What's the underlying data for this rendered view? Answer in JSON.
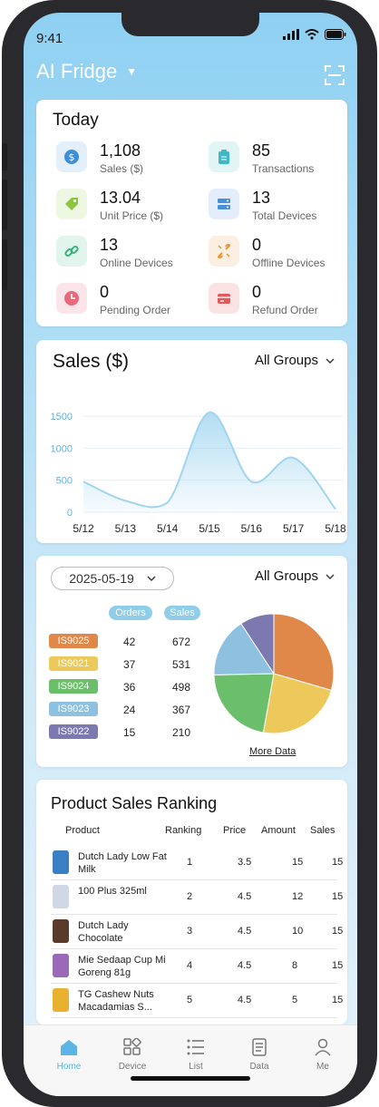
{
  "status_bar": {
    "time": "9:41"
  },
  "header": {
    "title": "AI Fridge"
  },
  "today": {
    "title": "Today",
    "stats": [
      {
        "value": "1,108",
        "label": "Sales ($)",
        "icon": "dollar-icon",
        "color": "#3b8fd9",
        "bg": "#e3f0fb"
      },
      {
        "value": "85",
        "label": "Transactions",
        "icon": "clipboard-icon",
        "color": "#3fb8c4",
        "bg": "#e2f5f6"
      },
      {
        "value": "13.04",
        "label": "Unit Price ($)",
        "icon": "price-tag-icon",
        "color": "#8cc63f",
        "bg": "#eef7e2"
      },
      {
        "value": "13",
        "label": "Total Devices",
        "icon": "server-icon",
        "color": "#4a90d9",
        "bg": "#e4eefa"
      },
      {
        "value": "13",
        "label": "Online Devices",
        "icon": "link-icon",
        "color": "#37b37e",
        "bg": "#e2f5ec"
      },
      {
        "value": "0",
        "label": "Offline Devices",
        "icon": "broken-link-icon",
        "color": "#e8963a",
        "bg": "#fbefe1"
      },
      {
        "value": "0",
        "label": "Pending Order",
        "icon": "clock-icon",
        "color": "#e96a7a",
        "bg": "#fbe5e8"
      },
      {
        "value": "0",
        "label": "Refund Order",
        "icon": "refund-icon",
        "color": "#e05a5a",
        "bg": "#fbe3e3"
      }
    ]
  },
  "sales": {
    "title": "Sales ($)",
    "group_filter": "All Groups"
  },
  "chart_data": {
    "type": "area",
    "title": "Sales ($)",
    "categories": [
      "5/12",
      "5/13",
      "5/14",
      "5/15",
      "5/16",
      "5/17",
      "5/18"
    ],
    "values": [
      480,
      180,
      150,
      1560,
      480,
      850,
      50
    ],
    "yticks": [
      "0",
      "500",
      "1000",
      "1500"
    ],
    "ylim": [
      0,
      1700
    ],
    "grid": true,
    "color": "#9fd5f0"
  },
  "devices": {
    "date": "2025-05-19",
    "group_filter": "All Groups",
    "col_orders": "Orders",
    "col_sales": "Sales",
    "rows": [
      {
        "id": "IS9025",
        "orders": "42",
        "sales": "672",
        "color": "#e0884a"
      },
      {
        "id": "IS9021",
        "orders": "37",
        "sales": "531",
        "color": "#ecc95a"
      },
      {
        "id": "IS9024",
        "orders": "36",
        "sales": "498",
        "color": "#6cbf6a"
      },
      {
        "id": "IS9023",
        "orders": "24",
        "sales": "367",
        "color": "#8ec0e0"
      },
      {
        "id": "IS9022",
        "orders": "15",
        "sales": "210",
        "color": "#7b79b0"
      }
    ],
    "more_link": "More Data"
  },
  "ranking": {
    "title": "Product Sales Ranking",
    "headers": {
      "product": "Product",
      "ranking": "Ranking",
      "price": "Price",
      "amount": "Amount",
      "sales": "Sales"
    },
    "rows": [
      {
        "name": "Dutch Lady Low Fat Milk",
        "rank": "1",
        "price": "3.5",
        "amount": "15",
        "sales": "15",
        "thumb": "#3a7fc4"
      },
      {
        "name": "100 Plus 325ml",
        "rank": "2",
        "price": "4.5",
        "amount": "12",
        "sales": "15",
        "thumb": "#cfd8e4"
      },
      {
        "name": "Dutch Lady Chocolate",
        "rank": "3",
        "price": "4.5",
        "amount": "10",
        "sales": "15",
        "thumb": "#5a3a2a"
      },
      {
        "name": "Mie Sedaap Cup Mi Goreng 81g",
        "rank": "4",
        "price": "4.5",
        "amount": "8",
        "sales": "15",
        "thumb": "#9a6ab8"
      },
      {
        "name": "TG Cashew Nuts Macadamias S...",
        "rank": "5",
        "price": "4.5",
        "amount": "5",
        "sales": "15",
        "thumb": "#e8b230"
      }
    ]
  },
  "tabs": [
    {
      "label": "Home",
      "icon": "home-icon",
      "active": true
    },
    {
      "label": "Device",
      "icon": "grid-icon",
      "active": false
    },
    {
      "label": "List",
      "icon": "list-icon",
      "active": false
    },
    {
      "label": "Data",
      "icon": "document-icon",
      "active": false
    },
    {
      "label": "Me",
      "icon": "person-icon",
      "active": false
    }
  ]
}
